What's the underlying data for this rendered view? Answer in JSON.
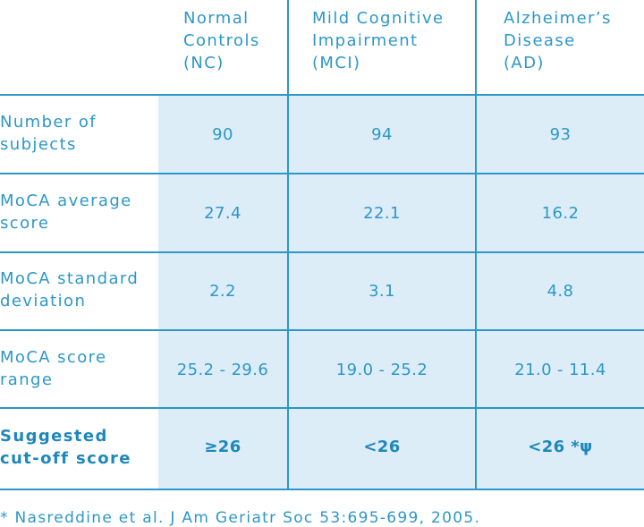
{
  "columns": [
    {
      "line1": "Normal",
      "line2": "Controls",
      "line3": "(NC)"
    },
    {
      "line1": "Mild Cognitive",
      "line2": "Impairment",
      "line3": "(MCI)"
    },
    {
      "line1": "Alzheimer’s",
      "line2": "Disease",
      "line3": "(AD)"
    }
  ],
  "rows": [
    {
      "label1": "Number of",
      "label2": "subjects",
      "values": [
        "90",
        "94",
        "93"
      ]
    },
    {
      "label1": "MoCA average",
      "label2": "score",
      "values": [
        "27.4",
        "22.1",
        "16.2"
      ]
    },
    {
      "label1": "MoCA standard",
      "label2": "deviation",
      "values": [
        "2.2",
        "3.1",
        "4.8"
      ]
    },
    {
      "label1": "MoCA score",
      "label2": "range",
      "values": [
        "25.2 - 29.6",
        "19.0 - 25.2",
        "21.0 - 11.4"
      ]
    },
    {
      "label1": "Suggested",
      "label2": "cut-off score",
      "values": [
        "≥26",
        "<26",
        "<26 *ψ"
      ]
    }
  ],
  "footnote": "* Nasreddine et al. J Am Geriatr Soc 53:695-699, 2005.",
  "colors": {
    "accent": "#2d97c8",
    "cell_fill": "#ddedf7"
  }
}
